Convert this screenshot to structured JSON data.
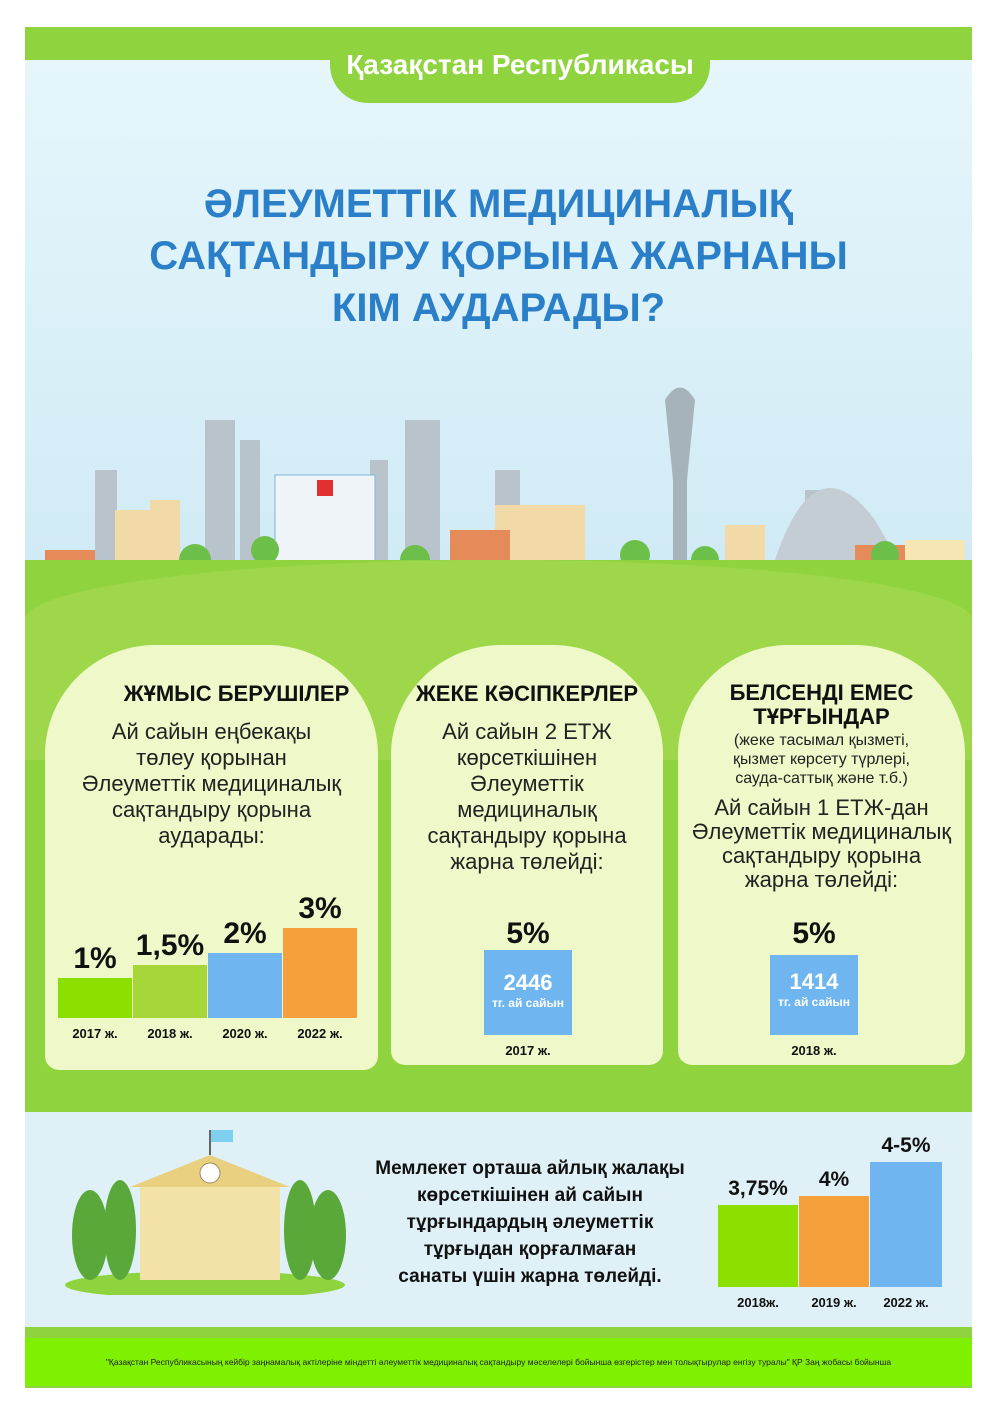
{
  "header": {
    "country": "Қазақстан Республикасы"
  },
  "title": {
    "lines": [
      "ӘЛЕУМЕТТІК МЕДИЦИНАЛЫҚ",
      "САҚТАНДЫРУ ҚОРЫНА ЖАРНАНЫ",
      "КІМ АУДАРАДЫ?"
    ]
  },
  "colors": {
    "title": "#2a7fc8",
    "green": "#8fd33f",
    "bar_green": "#8be000",
    "bar_lime": "#a6d63a",
    "bar_blue": "#6fb6f0",
    "bar_orange": "#f5a03a"
  },
  "cards": [
    {
      "heading": "ЖҰМЫС БЕРУШІЛЕР",
      "text": [
        "Ай сайын еңбекақы",
        "төлеу қорынан",
        "Әлеуметтік медициналық",
        "сақтандыру қорына",
        "аударады:"
      ]
    },
    {
      "heading": "ЖЕКЕ КӘСІПКЕРЛЕР",
      "text": [
        "Ай сайын 2 ЕТЖ",
        "көрсеткішінен",
        "Әлеуметтік",
        "медициналық",
        "сақтандыру қорына",
        "жарна төлейді:"
      ],
      "amount": "2446",
      "amount_note": "тг. ай сайын"
    },
    {
      "heading": [
        "БЕЛСЕНДІ ЕМЕС",
        "ТҰРҒЫНДАР"
      ],
      "note": [
        "(жеке тасымал қызметі,",
        "қызмет көрсету түрлері,",
        "сауда-саттық  және  т.б.)"
      ],
      "text": [
        "Ай сайын 1 ЕТЖ-дан",
        "Әлеуметтік медициналық",
        "сақтандыру қорына",
        "жарна төлейді:"
      ],
      "amount": "1414",
      "amount_note": "тг. ай сайын"
    }
  ],
  "state": {
    "text": [
      "Мемлекет орташа айлық жалақы",
      "көрсеткішінен  ай сайын",
      "тұрғындардың  әлеуметтік",
      "тұрғыдан қорғалмаған",
      "санаты үшін жарна төлейді."
    ]
  },
  "footer": {
    "note": "\"Қазақстан Республикасының кейбір заңнамалық актілеріне міндетті әлеуметтік медициналық сақтандыру мәселелері бойынша өзгерістер мен толықтырулар енгізу туралы\" ҚР Заң жобасы бойынша"
  },
  "chart_data": [
    {
      "type": "bar",
      "categories": [
        "2017 ж.",
        "2018 ж.",
        "2020 ж.",
        "2022 ж."
      ],
      "values": [
        1,
        1.5,
        2,
        3
      ],
      "labels": [
        "1%",
        "1,5%",
        "2%",
        "3%"
      ]
    },
    {
      "type": "bar",
      "categories": [
        "2017 ж."
      ],
      "values": [
        5
      ],
      "labels": [
        "5%"
      ]
    },
    {
      "type": "bar",
      "categories": [
        "2018 ж."
      ],
      "values": [
        5
      ],
      "labels": [
        "5%"
      ]
    },
    {
      "type": "bar",
      "categories": [
        "2018ж.",
        "2019 ж.",
        "2022 ж."
      ],
      "values": [
        3.75,
        4,
        5
      ],
      "labels": [
        "3,75%",
        "4%",
        "4-5%"
      ]
    }
  ]
}
